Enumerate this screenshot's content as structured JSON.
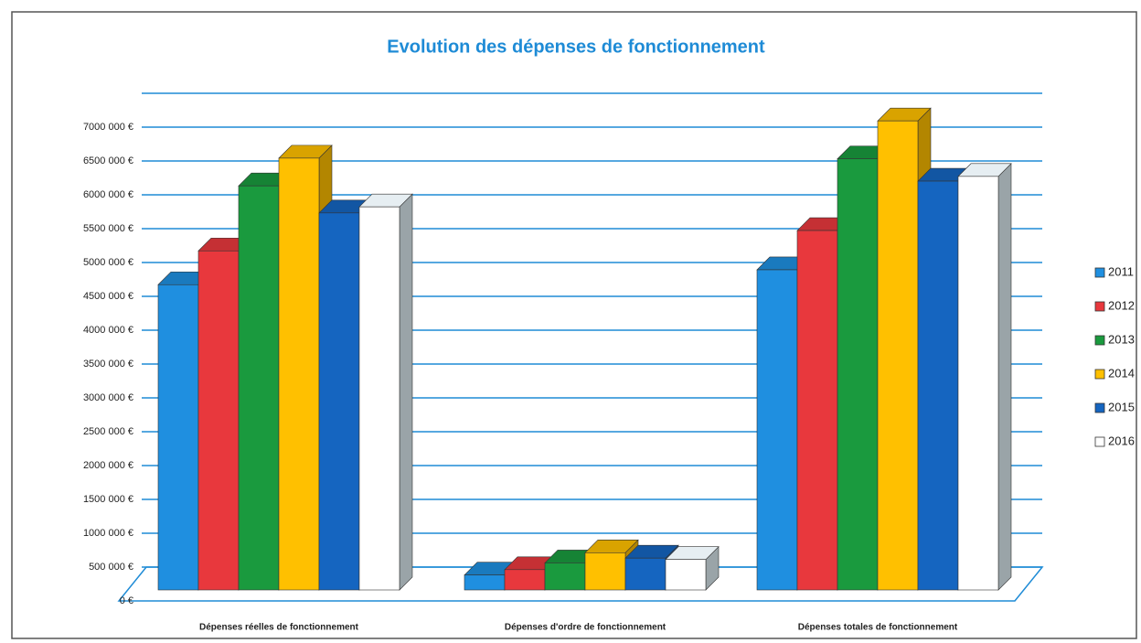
{
  "chart_data": {
    "type": "bar3d",
    "title": "Evolution des dépenses de fonctionnement",
    "categories": [
      "Dépenses réelles de fonctionnement",
      "Dépenses d'ordre de fonctionnement",
      "Dépenses totales de fonctionnement"
    ],
    "series": [
      {
        "name": "2011",
        "color": "#1f8fe0",
        "values": [
          4510000,
          220000,
          4730000
        ]
      },
      {
        "name": "2012",
        "color": "#e8383d",
        "values": [
          5010000,
          300000,
          5310000
        ]
      },
      {
        "name": "2013",
        "color": "#1a9a3e",
        "values": [
          5970000,
          400000,
          6370000
        ]
      },
      {
        "name": "2014",
        "color": "#ffc000",
        "values": [
          6380000,
          550000,
          6930000
        ]
      },
      {
        "name": "2015",
        "color": "#1565c0",
        "values": [
          5570000,
          470000,
          6040000
        ]
      },
      {
        "name": "2016",
        "color": "#ffffff",
        "values": [
          5660000,
          450000,
          6110000
        ]
      }
    ],
    "ylim": [
      0,
      7000000
    ],
    "yticks": [
      {
        "value": 0,
        "label": "0 €"
      },
      {
        "value": 500000,
        "label": "500 000 €"
      },
      {
        "value": 1000000,
        "label": "1000 000 €"
      },
      {
        "value": 1500000,
        "label": "1500 000 €"
      },
      {
        "value": 2000000,
        "label": "2000 000 €"
      },
      {
        "value": 2500000,
        "label": "2500 000 €"
      },
      {
        "value": 3000000,
        "label": "3000 000 €"
      },
      {
        "value": 3500000,
        "label": "3500 000 €"
      },
      {
        "value": 4000000,
        "label": "4000 000 €"
      },
      {
        "value": 4500000,
        "label": "4500 000 €"
      },
      {
        "value": 5000000,
        "label": "5000 000 €"
      },
      {
        "value": 5500000,
        "label": "5500 000 €"
      },
      {
        "value": 6000000,
        "label": "6000 000 €"
      },
      {
        "value": 6500000,
        "label": "6500 000 €"
      },
      {
        "value": 7000000,
        "label": "7000 000 €"
      }
    ],
    "grid": true
  }
}
